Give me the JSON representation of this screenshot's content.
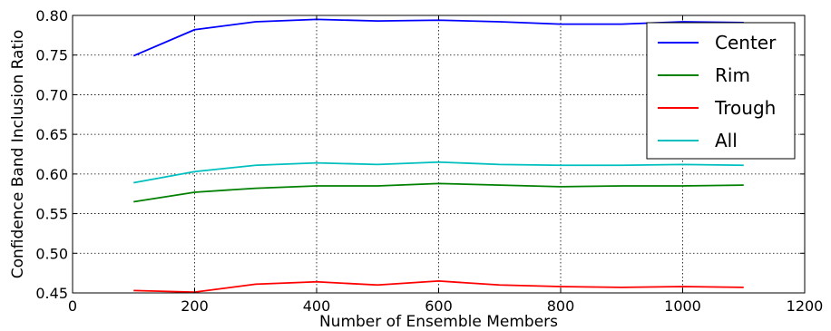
{
  "chart_data": {
    "type": "line",
    "title": "",
    "xlabel": "Number of Ensemble Members",
    "ylabel": "Confidence Band Inclusion Ratio",
    "xlim": [
      0,
      1200
    ],
    "ylim": [
      0.45,
      0.8
    ],
    "x_ticks": [
      0,
      200,
      400,
      600,
      800,
      1000,
      1200
    ],
    "x_tick_labels": [
      "0",
      "200",
      "400",
      "600",
      "800",
      "1000",
      "1200"
    ],
    "y_ticks": [
      0.45,
      0.5,
      0.55,
      0.6,
      0.65,
      0.7,
      0.75,
      0.8
    ],
    "y_tick_labels": [
      "0.45",
      "0.50",
      "0.55",
      "0.60",
      "0.65",
      "0.70",
      "0.75",
      "0.80"
    ],
    "grid": true,
    "legend_position": "top-right",
    "x": [
      100,
      200,
      300,
      400,
      500,
      600,
      700,
      800,
      900,
      1000,
      1100
    ],
    "series": [
      {
        "name": "Center",
        "color": "#0000ff",
        "values": [
          0.749,
          0.782,
          0.792,
          0.795,
          0.793,
          0.794,
          0.792,
          0.789,
          0.789,
          0.792,
          0.791
        ]
      },
      {
        "name": "Rim",
        "color": "#008000",
        "values": [
          0.565,
          0.577,
          0.582,
          0.585,
          0.585,
          0.588,
          0.586,
          0.584,
          0.585,
          0.585,
          0.586
        ]
      },
      {
        "name": "Trough",
        "color": "#ff0000",
        "values": [
          0.453,
          0.451,
          0.461,
          0.464,
          0.46,
          0.465,
          0.46,
          0.458,
          0.457,
          0.458,
          0.457
        ]
      },
      {
        "name": "All",
        "color": "#00bfbf",
        "values": [
          0.589,
          0.603,
          0.611,
          0.614,
          0.612,
          0.615,
          0.612,
          0.611,
          0.611,
          0.612,
          0.611
        ]
      }
    ]
  }
}
